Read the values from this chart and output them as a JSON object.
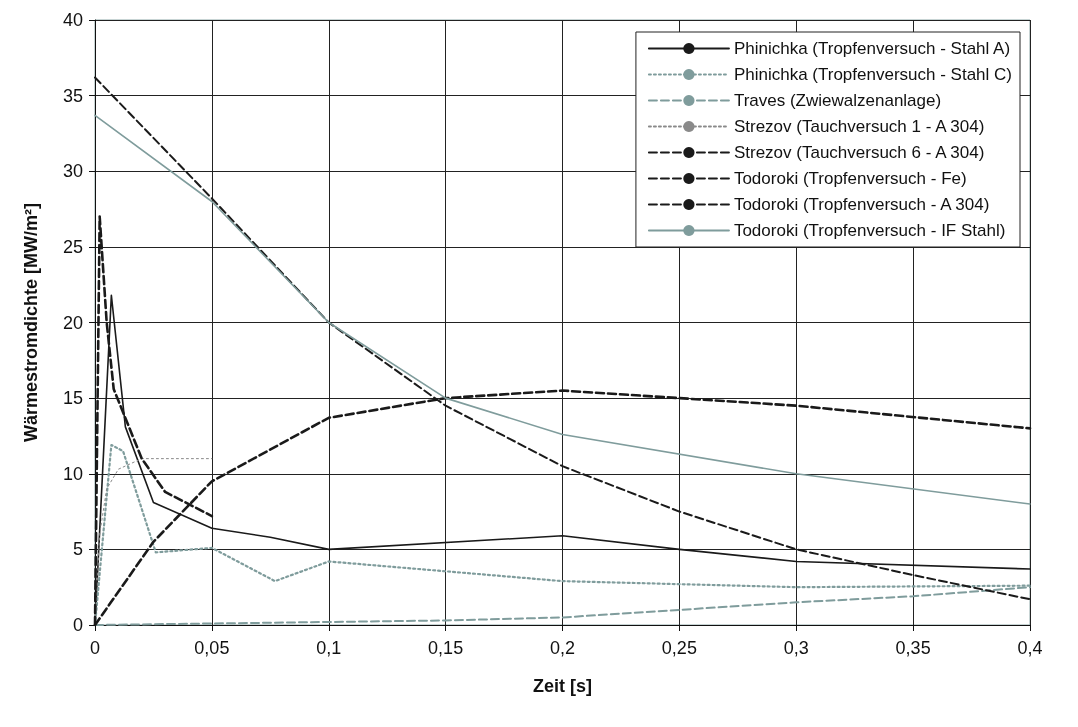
{
  "chart_data": {
    "type": "line",
    "xlabel": "Zeit [s]",
    "ylabel": "Wärmestromdichte [MW/m²]",
    "xlim": [
      0,
      0.4
    ],
    "xticks": [
      0,
      {
        "value": 0.05,
        "label": "0,05"
      },
      {
        "value": 0.1,
        "label": "0,1"
      },
      {
        "value": 0.15,
        "label": "0,15"
      },
      {
        "value": 0.2,
        "label": "0,2"
      },
      {
        "value": 0.25,
        "label": "0,25"
      },
      {
        "value": 0.3,
        "label": "0,3"
      },
      {
        "value": 0.35,
        "label": "0,35"
      },
      {
        "value": 0.4,
        "label": "0,4"
      }
    ],
    "ylim": [
      0,
      40
    ],
    "yticks": [
      0,
      5,
      10,
      15,
      20,
      25,
      30,
      35,
      40
    ],
    "grid": true,
    "legend": "top right",
    "marker": "none",
    "series": [
      {
        "name": "Phinichka (Tropfenversuch - Stahl A)",
        "color": "#1a1a1a",
        "line_style": "solid",
        "x": [
          0,
          0.007,
          0.013,
          0.025,
          0.05,
          0.075,
          0.1,
          0.2,
          0.25,
          0.3,
          0.4
        ],
        "values": [
          0,
          21.8,
          13.1,
          8.1,
          6.4,
          5.8,
          5.0,
          5.9,
          5.0,
          4.2,
          3.7
        ]
      },
      {
        "name": "Phinichka (Tropfenversuch - Stahl C)",
        "color": "#7f9c9c",
        "line_style": "dotted",
        "x": [
          0,
          0.007,
          0.012,
          0.026,
          0.05,
          0.077,
          0.1,
          0.2,
          0.25,
          0.3,
          0.4
        ],
        "values": [
          0,
          11.9,
          11.5,
          4.8,
          5.1,
          2.9,
          4.2,
          2.9,
          2.7,
          2.5,
          2.6
        ]
      },
      {
        "name": "Traves (Zwiewalzenanlage)",
        "color": "#7f9c9c",
        "line_style": "dashed",
        "x": [
          0,
          0.05,
          0.1,
          0.15,
          0.2,
          0.3,
          0.35,
          0.4
        ],
        "values": [
          0,
          0.1,
          0.2,
          0.3,
          0.5,
          1.5,
          1.9,
          2.5
        ]
      },
      {
        "name": "Strezov (Tauchversuch 1 - A 304)",
        "color": "#8a8a8a",
        "line_style": "dotted",
        "x": [
          0,
          0.002,
          0.005,
          0.01,
          0.02,
          0.05
        ],
        "values": [
          0,
          6,
          9,
          10.3,
          11,
          11
        ]
      },
      {
        "name": "Strezov (Tauchversuch 6 - A 304)",
        "color": "#1a1a1a",
        "line_style": "dashed",
        "x": [
          0,
          0.002,
          0.005,
          0.008,
          0.02,
          0.03,
          0.05
        ],
        "values": [
          0,
          27,
          20,
          15.6,
          11,
          8.8,
          7.2
        ]
      },
      {
        "name": "Todoroki (Tropfenversuch - Fe)",
        "color": "#1a1a1a",
        "line_style": "dashed",
        "x": [
          0,
          0.025,
          0.05,
          0.1,
          0.15,
          0.2,
          0.3,
          0.4
        ],
        "values": [
          0,
          5.5,
          9.5,
          13.7,
          15,
          15.5,
          14.5,
          13
        ]
      },
      {
        "name": "Todoroki (Tropfenversuch - A 304)",
        "color": "#1a1a1a",
        "line_style": "dashed",
        "x": [
          0,
          0.05,
          0.1,
          0.15,
          0.2,
          0.25,
          0.3,
          0.35,
          0.4
        ],
        "values": [
          36.2,
          28.2,
          20,
          14.5,
          10.5,
          7.5,
          5,
          3.3,
          1.7
        ]
      },
      {
        "name": "Todoroki (Tropfenversuch - IF Stahl)",
        "color": "#7f9c9c",
        "line_style": "solid",
        "x": [
          0,
          0.05,
          0.1,
          0.15,
          0.2,
          0.3,
          0.4
        ],
        "values": [
          33.7,
          28,
          20,
          15,
          12.6,
          10,
          8
        ]
      }
    ]
  }
}
